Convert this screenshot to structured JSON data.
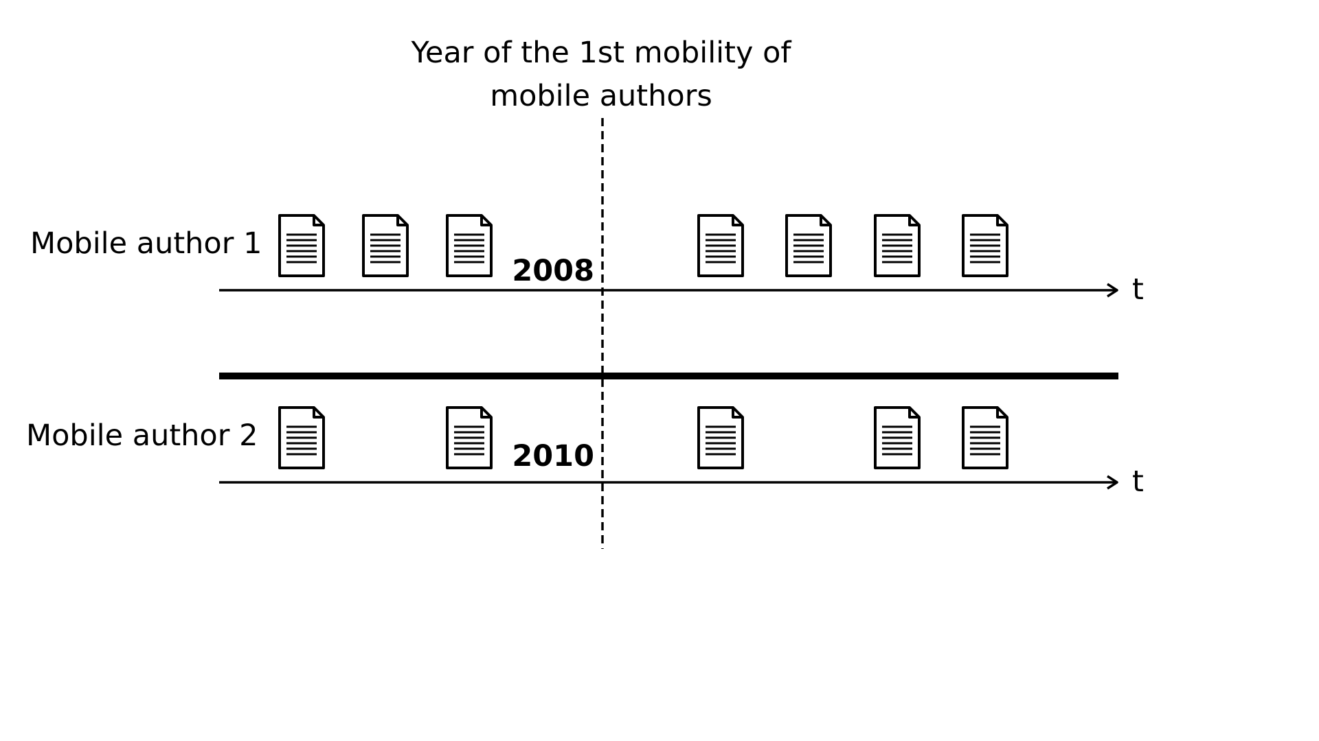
{
  "title": {
    "line1": "Year of the 1st mobility of",
    "line2": "mobile authors"
  },
  "rows": [
    {
      "label": "Mobile author 1",
      "year": "2008",
      "axis_label": "t",
      "documents_before": 3,
      "documents_after": 4
    },
    {
      "label": "Mobile author 2",
      "year": "2010",
      "axis_label": "t",
      "documents_before": 2,
      "documents_after": 3
    }
  ],
  "colors": {
    "ink": "#000000",
    "background": "#ffffff"
  },
  "icons": {
    "document": "document-icon"
  }
}
